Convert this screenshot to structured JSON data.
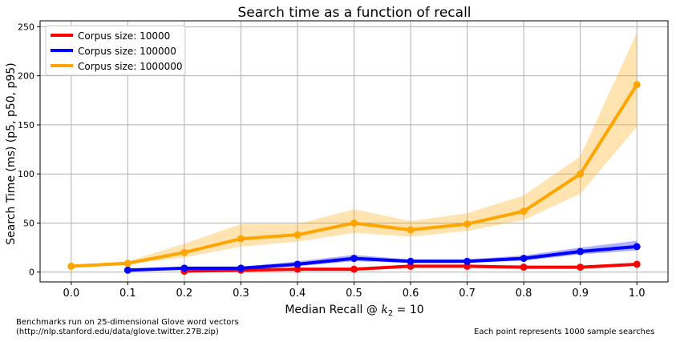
{
  "chart_data": {
    "type": "line",
    "title": "Search time as a function of recall",
    "xlabel_prefix": "Median Recall @ ",
    "xlabel_var": "k",
    "xlabel_sub": "2",
    "xlabel_suffix": " = 10",
    "ylabel": "Search Time (ms) (p5, p50, p95)",
    "xlim": [
      -0.055,
      1.055
    ],
    "ylim": [
      -10,
      256
    ],
    "xticks": [
      0.0,
      0.1,
      0.2,
      0.3,
      0.4,
      0.5,
      0.6,
      0.7,
      0.8,
      0.9,
      1.0
    ],
    "xtick_labels": [
      "0.0",
      "0.1",
      "0.2",
      "0.3",
      "0.4",
      "0.5",
      "0.6",
      "0.7",
      "0.8",
      "0.9",
      "1.0"
    ],
    "yticks": [
      0,
      50,
      100,
      150,
      200,
      250
    ],
    "ytick_labels": [
      "0",
      "50",
      "100",
      "150",
      "200",
      "250"
    ],
    "grid": true,
    "legend_position": "top-left",
    "series": [
      {
        "name": "Corpus size: 10000",
        "color": "#ff0000",
        "x": [
          0.2,
          0.3,
          0.4,
          0.5,
          0.6,
          0.7,
          0.8,
          0.9,
          1.0
        ],
        "p50": [
          1,
          2,
          3,
          3,
          6,
          6,
          5,
          5,
          8
        ],
        "p5": [
          0.5,
          1.5,
          2,
          2,
          4.5,
          5,
          4,
          4,
          7
        ],
        "p95": [
          1.5,
          3,
          4,
          4.5,
          7,
          7,
          6,
          6,
          9.5
        ]
      },
      {
        "name": "Corpus size: 100000",
        "color": "#0000ff",
        "x": [
          0.1,
          0.2,
          0.3,
          0.4,
          0.5,
          0.6,
          0.7,
          0.8,
          0.9,
          1.0
        ],
        "p50": [
          2,
          4,
          4,
          8,
          14,
          11,
          11,
          14,
          21,
          26
        ],
        "p5": [
          1.5,
          3,
          3,
          6,
          11,
          9.5,
          9.5,
          11.5,
          18,
          22
        ],
        "p95": [
          3,
          5.5,
          5.5,
          11,
          17.5,
          13,
          13,
          17,
          25,
          32
        ]
      },
      {
        "name": "Corpus size: 1000000",
        "color": "#ffa500",
        "x": [
          0.0,
          0.1,
          0.2,
          0.3,
          0.4,
          0.5,
          0.6,
          0.7,
          0.8,
          0.9,
          1.0
        ],
        "p50": [
          6,
          9,
          20,
          34,
          38,
          50,
          43,
          49,
          62,
          100,
          191
        ],
        "p5": [
          5.5,
          8,
          15,
          26,
          31,
          40,
          36,
          42,
          53,
          80,
          148
        ],
        "p95": [
          7,
          11,
          29,
          49,
          49,
          64,
          52,
          60,
          78,
          118,
          244
        ]
      }
    ]
  },
  "notes": {
    "left": "Benchmarks run on 25-dimensional Glove word vectors\n(http://nlp.stanford.edu/data/glove.twitter.27B.zip)",
    "right": "Each point represents 1000 sample searches"
  }
}
